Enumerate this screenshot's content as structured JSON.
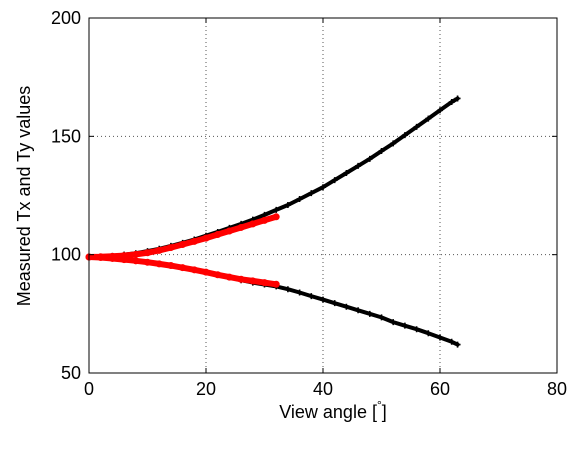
{
  "chart_data": {
    "type": "scatter",
    "title": "",
    "xlabel": "View angle [",
    "xlabel_unit": "°",
    "xlabel_close": "]",
    "ylabel": "Measured Tx and Ty values",
    "xlim": [
      0,
      80
    ],
    "ylim": [
      50,
      200
    ],
    "xticks": [
      "0",
      "20",
      "40",
      "60",
      "80"
    ],
    "yticks": [
      "50",
      "100",
      "150",
      "200"
    ],
    "grid": true,
    "legend": "none",
    "series": [
      {
        "color": "#000000",
        "marker": "plus",
        "x": [
          0,
          2,
          4,
          6,
          8,
          10,
          12,
          14,
          16,
          18,
          20,
          22,
          24,
          26,
          28,
          30,
          32,
          34,
          36,
          38,
          40,
          42,
          44,
          46,
          48,
          50,
          52,
          54,
          56,
          58,
          60,
          62,
          63
        ],
        "y": [
          99,
          99.2,
          99.5,
          100,
          100.6,
          101.5,
          102.5,
          103.7,
          105,
          106.4,
          108,
          109.6,
          111.3,
          113,
          114.8,
          116.8,
          118.9,
          121,
          123.5,
          126,
          128.5,
          131.5,
          134.5,
          137.5,
          140.5,
          143.8,
          147,
          150.5,
          154,
          157.5,
          161,
          164.5,
          166
        ]
      },
      {
        "color": "#000000",
        "marker": "plus",
        "x": [
          0,
          2,
          4,
          6,
          8,
          10,
          12,
          14,
          16,
          18,
          20,
          22,
          24,
          26,
          28,
          30,
          32,
          34,
          36,
          38,
          40,
          42,
          44,
          46,
          48,
          50,
          52,
          54,
          56,
          58,
          60,
          62,
          63
        ],
        "y": [
          99,
          98.8,
          98.4,
          97.9,
          97.4,
          96.8,
          96.1,
          95.4,
          94.5,
          93.6,
          92.6,
          91.5,
          90.4,
          89.2,
          88.2,
          87.4,
          86.6,
          85.4,
          84,
          82.5,
          81,
          79.5,
          78,
          76.5,
          75,
          73.5,
          71.5,
          70,
          68.5,
          66.8,
          65,
          63.2,
          62
        ]
      },
      {
        "color": "#ff0000",
        "marker": "dot",
        "x": [
          0,
          2,
          4,
          6,
          8,
          10,
          12,
          14,
          16,
          18,
          20,
          22,
          24,
          26,
          28,
          30,
          32
        ],
        "y": [
          99,
          99.1,
          99.3,
          99.6,
          100.1,
          100.8,
          101.8,
          103,
          104.3,
          105.6,
          107,
          108.5,
          110,
          111.5,
          113,
          114.5,
          116
        ]
      },
      {
        "color": "#ff0000",
        "marker": "dot",
        "x": [
          0,
          2,
          4,
          6,
          8,
          10,
          12,
          14,
          16,
          18,
          20,
          22,
          24,
          26,
          28,
          30,
          32
        ],
        "y": [
          99,
          98.8,
          98.4,
          97.9,
          97.4,
          96.8,
          96.1,
          95.4,
          94.5,
          93.6,
          92.6,
          91.5,
          90.5,
          89.6,
          88.9,
          88.2,
          87.5
        ]
      }
    ]
  }
}
